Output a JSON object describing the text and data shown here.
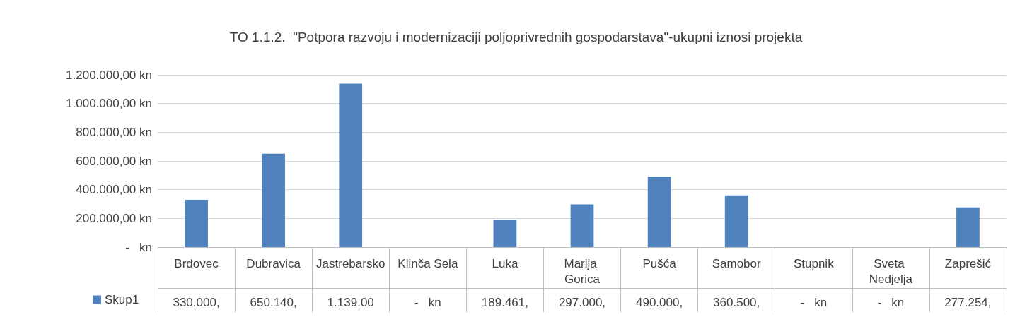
{
  "chart_data": {
    "type": "bar",
    "title": "TO 1.1.2.  \"Potpora razvoju i modernizaciji poljoprivrednih gospodarstava\"-ukupni iznosi projekta",
    "categories": [
      "Brdovec",
      "Dubravica",
      "Jastrebarsko",
      "Klinča Sela",
      "Luka",
      "Marija Gorica",
      "Pušća",
      "Samobor",
      "Stupnik",
      "Sveta Nedjelja",
      "Zaprešić"
    ],
    "series": [
      {
        "name": "Skup1",
        "color": "#4f81bd",
        "values": [
          330000,
          650140,
          1139000,
          0,
          189461,
          297000,
          490000,
          360500,
          0,
          0,
          277254
        ],
        "value_labels": [
          "330.000,",
          "650.140,",
          "1.139.00",
          "-   kn",
          "189.461,",
          "297.000,",
          "490.000,",
          "360.500,",
          "-   kn",
          "-   kn",
          "277.254,"
        ]
      }
    ],
    "ylim": [
      0,
      1200000
    ],
    "yticks": [
      {
        "value": 0,
        "label": "-   kn"
      },
      {
        "value": 200000,
        "label": "200.000,00 kn"
      },
      {
        "value": 400000,
        "label": "400.000,00 kn"
      },
      {
        "value": 600000,
        "label": "600.000,00 kn"
      },
      {
        "value": 800000,
        "label": "800.000,00 kn"
      },
      {
        "value": 1000000,
        "label": "1.000.000,00 kn"
      },
      {
        "value": 1200000,
        "label": "1.200.000,00 kn"
      }
    ],
    "grid": "y",
    "legend": "bottom left"
  }
}
